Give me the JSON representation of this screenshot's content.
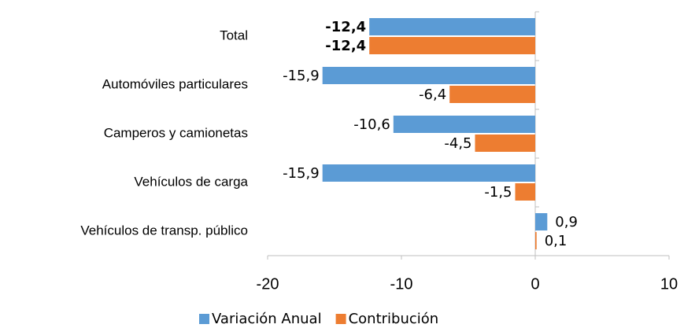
{
  "chart_data": {
    "type": "hbar",
    "categories": [
      "Total",
      "Automóviles particulares",
      "Camperos y camionetas",
      "Vehículos de carga",
      "Vehículos de transp. público"
    ],
    "series": [
      {
        "name": "Variación Anual",
        "color": "#5b9bd5",
        "values": [
          -12.4,
          -15.9,
          -10.6,
          -15.9,
          0.9
        ],
        "value_labels": [
          "-12,4",
          "-15,9",
          "-10,6",
          "-15,9",
          "0,9"
        ]
      },
      {
        "name": "Contribución",
        "color": "#ed7d31",
        "values": [
          -12.4,
          -6.4,
          -4.5,
          -1.5,
          0.1
        ],
        "value_labels": [
          "-12,4",
          "-6,4",
          "-4,5",
          "-1,5",
          "0,1"
        ]
      }
    ],
    "xlim": [
      -20,
      10
    ],
    "xticks": [
      -20,
      -10,
      0,
      10
    ],
    "legend": "bottom"
  }
}
